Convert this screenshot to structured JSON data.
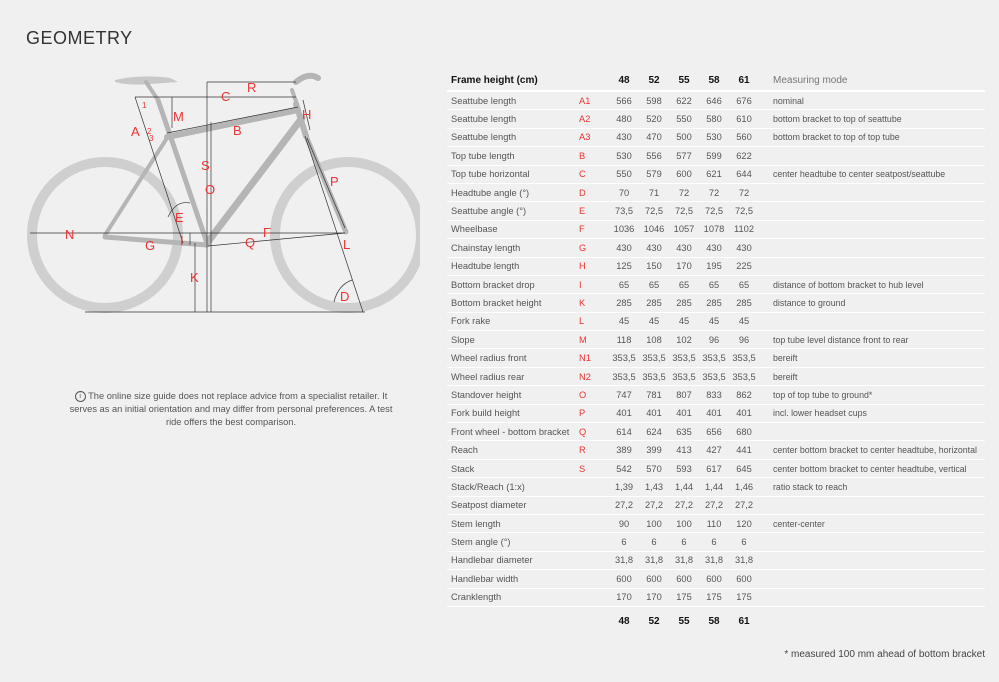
{
  "title": "GEOMETRY",
  "note": {
    "icon": "info-icon",
    "text": "The online size guide does not replace advice from a specialist retailer. It serves as an initial orientation and may differ from personal preferences. A test ride offers the best comparison."
  },
  "diagram": {
    "labels": {
      "A": "A",
      "sub1": "1",
      "sub2": "2",
      "sub3": "3",
      "B": "B",
      "C": "C",
      "D": "D",
      "E": "E",
      "F": "F",
      "G": "G",
      "H": "H",
      "I": "I",
      "K": "K",
      "L": "L",
      "M": "M",
      "N": "N",
      "O": "O",
      "P": "P",
      "Q": "Q",
      "R": "R",
      "S": "S"
    },
    "accent_color": "#e33333"
  },
  "table": {
    "header_label": "Frame height (cm)",
    "sizes": [
      "48",
      "52",
      "55",
      "58",
      "61"
    ],
    "mode_header": "Measuring mode",
    "rows": [
      {
        "label": "Seattube length",
        "code": "A1",
        "values": [
          "566",
          "598",
          "622",
          "646",
          "676"
        ],
        "mode": "nominal"
      },
      {
        "label": "Seattube length",
        "code": "A2",
        "values": [
          "480",
          "520",
          "550",
          "580",
          "610"
        ],
        "mode": "bottom bracket to top of seattube"
      },
      {
        "label": "Seattube length",
        "code": "A3",
        "values": [
          "430",
          "470",
          "500",
          "530",
          "560"
        ],
        "mode": "bottom bracket to top of top tube"
      },
      {
        "label": "Top tube length",
        "code": "B",
        "values": [
          "530",
          "556",
          "577",
          "599",
          "622"
        ],
        "mode": ""
      },
      {
        "label": "Top tube horizontal",
        "code": "C",
        "values": [
          "550",
          "579",
          "600",
          "621",
          "644"
        ],
        "mode": "center headtube to center seatpost/seattube"
      },
      {
        "label": "Headtube angle (°)",
        "code": "D",
        "values": [
          "70",
          "71",
          "72",
          "72",
          "72"
        ],
        "mode": ""
      },
      {
        "label": "Seattube angle (°)",
        "code": "E",
        "values": [
          "73,5",
          "72,5",
          "72,5",
          "72,5",
          "72,5"
        ],
        "mode": ""
      },
      {
        "label": "Wheelbase",
        "code": "F",
        "values": [
          "1036",
          "1046",
          "1057",
          "1078",
          "1102"
        ],
        "mode": ""
      },
      {
        "label": "Chainstay length",
        "code": "G",
        "values": [
          "430",
          "430",
          "430",
          "430",
          "430"
        ],
        "mode": ""
      },
      {
        "label": "Headtube length",
        "code": "H",
        "values": [
          "125",
          "150",
          "170",
          "195",
          "225"
        ],
        "mode": ""
      },
      {
        "label": "Bottom bracket drop",
        "code": "I",
        "values": [
          "65",
          "65",
          "65",
          "65",
          "65"
        ],
        "mode": "distance of bottom bracket to hub level"
      },
      {
        "label": "Bottom bracket height",
        "code": "K",
        "values": [
          "285",
          "285",
          "285",
          "285",
          "285"
        ],
        "mode": "distance to ground"
      },
      {
        "label": "Fork rake",
        "code": "L",
        "values": [
          "45",
          "45",
          "45",
          "45",
          "45"
        ],
        "mode": ""
      },
      {
        "label": "Slope",
        "code": "M",
        "values": [
          "118",
          "108",
          "102",
          "96",
          "96"
        ],
        "mode": "top tube level distance front to rear"
      },
      {
        "label": "Wheel radius front",
        "code": "N1",
        "values": [
          "353,5",
          "353,5",
          "353,5",
          "353,5",
          "353,5"
        ],
        "mode": "bereift"
      },
      {
        "label": "Wheel radius rear",
        "code": "N2",
        "values": [
          "353,5",
          "353,5",
          "353,5",
          "353,5",
          "353,5"
        ],
        "mode": "bereift"
      },
      {
        "label": "Standover height",
        "code": "O",
        "values": [
          "747",
          "781",
          "807",
          "833",
          "862"
        ],
        "mode": "top of top tube to ground*"
      },
      {
        "label": "Fork build height",
        "code": "P",
        "values": [
          "401",
          "401",
          "401",
          "401",
          "401"
        ],
        "mode": "incl. lower headset cups"
      },
      {
        "label": "Front wheel - bottom bracket",
        "code": "Q",
        "values": [
          "614",
          "624",
          "635",
          "656",
          "680"
        ],
        "mode": ""
      },
      {
        "label": "Reach",
        "code": "R",
        "values": [
          "389",
          "399",
          "413",
          "427",
          "441"
        ],
        "mode": "center bottom bracket to center headtube, horizontal"
      },
      {
        "label": "Stack",
        "code": "S",
        "values": [
          "542",
          "570",
          "593",
          "617",
          "645"
        ],
        "mode": "center bottom bracket to center headtube, vertical"
      },
      {
        "label": "Stack/Reach (1:x)",
        "code": "",
        "values": [
          "1,39",
          "1,43",
          "1,44",
          "1,44",
          "1,46"
        ],
        "mode": "ratio stack to reach"
      },
      {
        "label": "Seatpost diameter",
        "code": "",
        "values": [
          "27,2",
          "27,2",
          "27,2",
          "27,2",
          "27,2"
        ],
        "mode": ""
      },
      {
        "label": "Stem length",
        "code": "",
        "values": [
          "90",
          "100",
          "100",
          "110",
          "120"
        ],
        "mode": "center-center"
      },
      {
        "label": "Stem angle (°)",
        "code": "",
        "values": [
          "6",
          "6",
          "6",
          "6",
          "6"
        ],
        "mode": ""
      },
      {
        "label": "Handlebar diameter",
        "code": "",
        "values": [
          "31,8",
          "31,8",
          "31,8",
          "31,8",
          "31,8"
        ],
        "mode": ""
      },
      {
        "label": "Handlebar width",
        "code": "",
        "values": [
          "600",
          "600",
          "600",
          "600",
          "600"
        ],
        "mode": ""
      },
      {
        "label": "Cranklength",
        "code": "",
        "values": [
          "170",
          "170",
          "175",
          "175",
          "175"
        ],
        "mode": ""
      }
    ]
  },
  "footnote": "* measured 100 mm ahead of bottom bracket"
}
